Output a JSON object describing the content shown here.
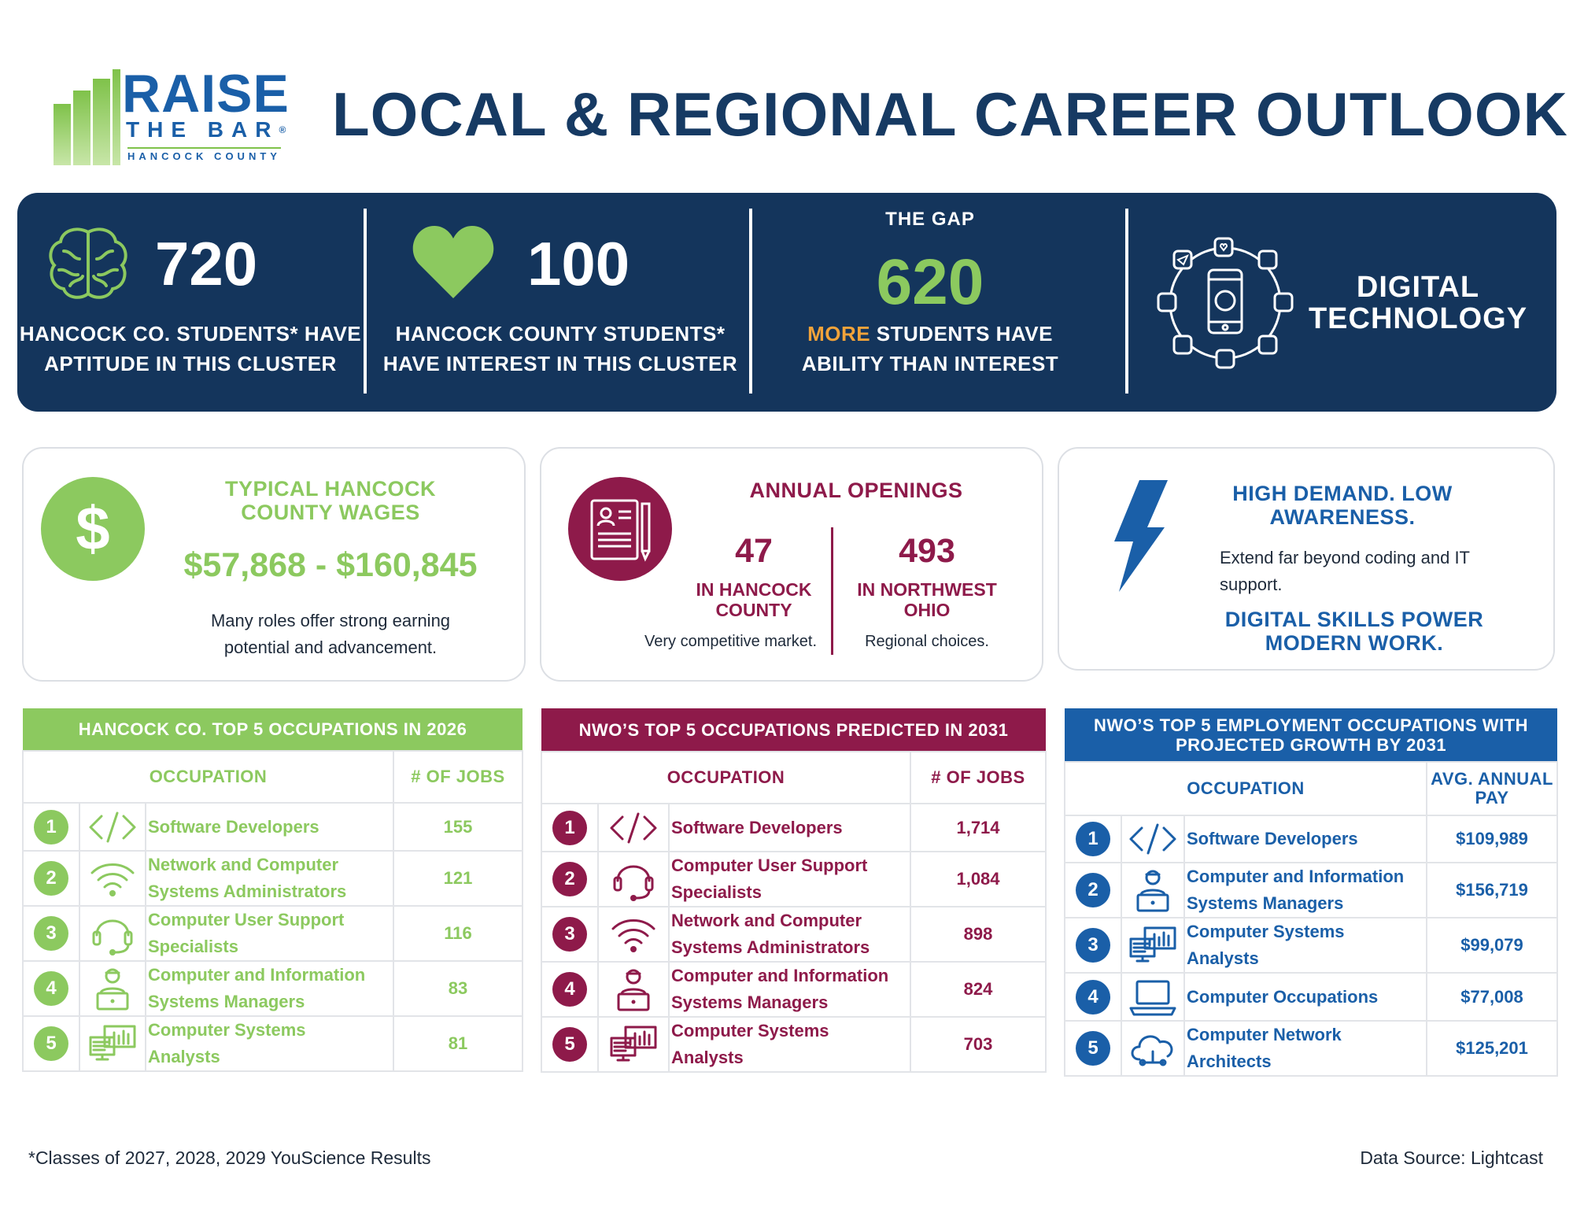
{
  "logo": {
    "line1": "RAISE",
    "line2": "THE BAR",
    "registered": "®",
    "line3": "HANCOCK COUNTY"
  },
  "title": "LOCAL & REGIONAL CAREER OUTLOOK",
  "colors": {
    "navy": "#14355c",
    "green": "#8cc95f",
    "maroon": "#8e1a4a",
    "blue": "#1a5fa8",
    "orange": "#f2a33a"
  },
  "banner": {
    "aptitude": {
      "icon": "brain-icon",
      "number": "720",
      "line1": "HANCOCK CO. STUDENTS* HAVE",
      "line2": "APTITUDE IN THIS CLUSTER"
    },
    "interest": {
      "icon": "heart-icon",
      "number": "100",
      "line1": "HANCOCK COUNTY STUDENTS*",
      "line2": "HAVE INTEREST IN THIS CLUSTER"
    },
    "gap": {
      "label": "THE GAP",
      "number": "620",
      "more": "MORE",
      "line1_rest": " STUDENTS HAVE",
      "line2": "ABILITY THAN INTEREST"
    },
    "cluster": {
      "icon": "digital-network-icon",
      "line1": "DIGITAL",
      "line2": "TECHNOLOGY"
    }
  },
  "wages": {
    "icon": "dollar-icon",
    "title_line1": "TYPICAL HANCOCK",
    "title_line2": "COUNTY WAGES",
    "range": "$57,868 - $160,845",
    "desc_line1": "Many roles offer strong earning",
    "desc_line2": "potential and advancement."
  },
  "openings": {
    "icon": "document-pen-icon",
    "title": "ANNUAL OPENINGS",
    "local": {
      "number": "47",
      "label_line1": "IN HANCOCK",
      "label_line2": "COUNTY",
      "note": "Very competitive market."
    },
    "regional": {
      "number": "493",
      "label_line1": "IN NORTHWEST",
      "label_line2": "OHIO",
      "note": "Regional choices."
    }
  },
  "demand": {
    "icon": "lightning-icon",
    "title_line1": "HIGH DEMAND. LOW",
    "title_line2": "AWARENESS.",
    "desc_line1": "Extend far beyond coding and IT",
    "desc_line2": "support.",
    "tagline1": "DIGITAL SKILLS POWER",
    "tagline2": "MODERN WORK."
  },
  "tables": [
    {
      "title": "HANCOCK CO. TOP 5 OCCUPATIONS IN 2026",
      "col1": "OCCUPATION",
      "col2": "# OF JOBS",
      "rows": [
        {
          "rank": "1",
          "icon": "code-icon",
          "line1": "Software Developers",
          "line2": "",
          "value": "155"
        },
        {
          "rank": "2",
          "icon": "wifi-icon",
          "line1": "Network and Computer",
          "line2": "Systems Administrators",
          "value": "121"
        },
        {
          "rank": "3",
          "icon": "headset-icon",
          "line1": "Computer User Support",
          "line2": "Specialists",
          "value": "116"
        },
        {
          "rank": "4",
          "icon": "manager-laptop-icon",
          "line1": "Computer and Information",
          "line2": "Systems Managers",
          "value": "83"
        },
        {
          "rank": "5",
          "icon": "analytics-monitor-icon",
          "line1": "Computer Systems",
          "line2": "Analysts",
          "value": "81"
        }
      ]
    },
    {
      "title": "NWO’S TOP 5 OCCUPATIONS PREDICTED IN 2031",
      "col1": "OCCUPATION",
      "col2": "# OF JOBS",
      "rows": [
        {
          "rank": "1",
          "icon": "code-icon",
          "line1": "Software Developers",
          "line2": "",
          "value": "1,714"
        },
        {
          "rank": "2",
          "icon": "headset-icon",
          "line1": "Computer User Support",
          "line2": "Specialists",
          "value": "1,084"
        },
        {
          "rank": "3",
          "icon": "wifi-icon",
          "line1": "Network and Computer",
          "line2": "Systems Administrators",
          "value": "898"
        },
        {
          "rank": "4",
          "icon": "manager-laptop-icon",
          "line1": "Computer and Information",
          "line2": "Systems Managers",
          "value": "824"
        },
        {
          "rank": "5",
          "icon": "analytics-monitor-icon",
          "line1": "Computer Systems",
          "line2": "Analysts",
          "value": "703"
        }
      ]
    },
    {
      "title_line1": "NWO’S TOP 5 EMPLOYMENT OCCUPATIONS WITH",
      "title_line2": "PROJECTED GROWTH BY 2031",
      "col1": "OCCUPATION",
      "col2_line1": "AVG. ANNUAL",
      "col2_line2": "PAY",
      "rows": [
        {
          "rank": "1",
          "icon": "code-icon",
          "line1": "Software Developers",
          "line2": "",
          "value": "$109,989"
        },
        {
          "rank": "2",
          "icon": "manager-laptop-icon",
          "line1": "Computer and Information",
          "line2": "Systems Managers",
          "value": "$156,719"
        },
        {
          "rank": "3",
          "icon": "analytics-monitor-icon",
          "line1": "Computer Systems",
          "line2": "Analysts",
          "value": "$99,079"
        },
        {
          "rank": "4",
          "icon": "laptop-icon",
          "line1": "Computer Occupations",
          "line2": "",
          "value": "$77,008"
        },
        {
          "rank": "5",
          "icon": "cloud-network-icon",
          "line1": "Computer Network",
          "line2": "Architects",
          "value": "$125,201"
        }
      ]
    }
  ],
  "footnote": "*Classes of 2027, 2028, 2029 YouScience Results",
  "source": "Data Source: Lightcast"
}
